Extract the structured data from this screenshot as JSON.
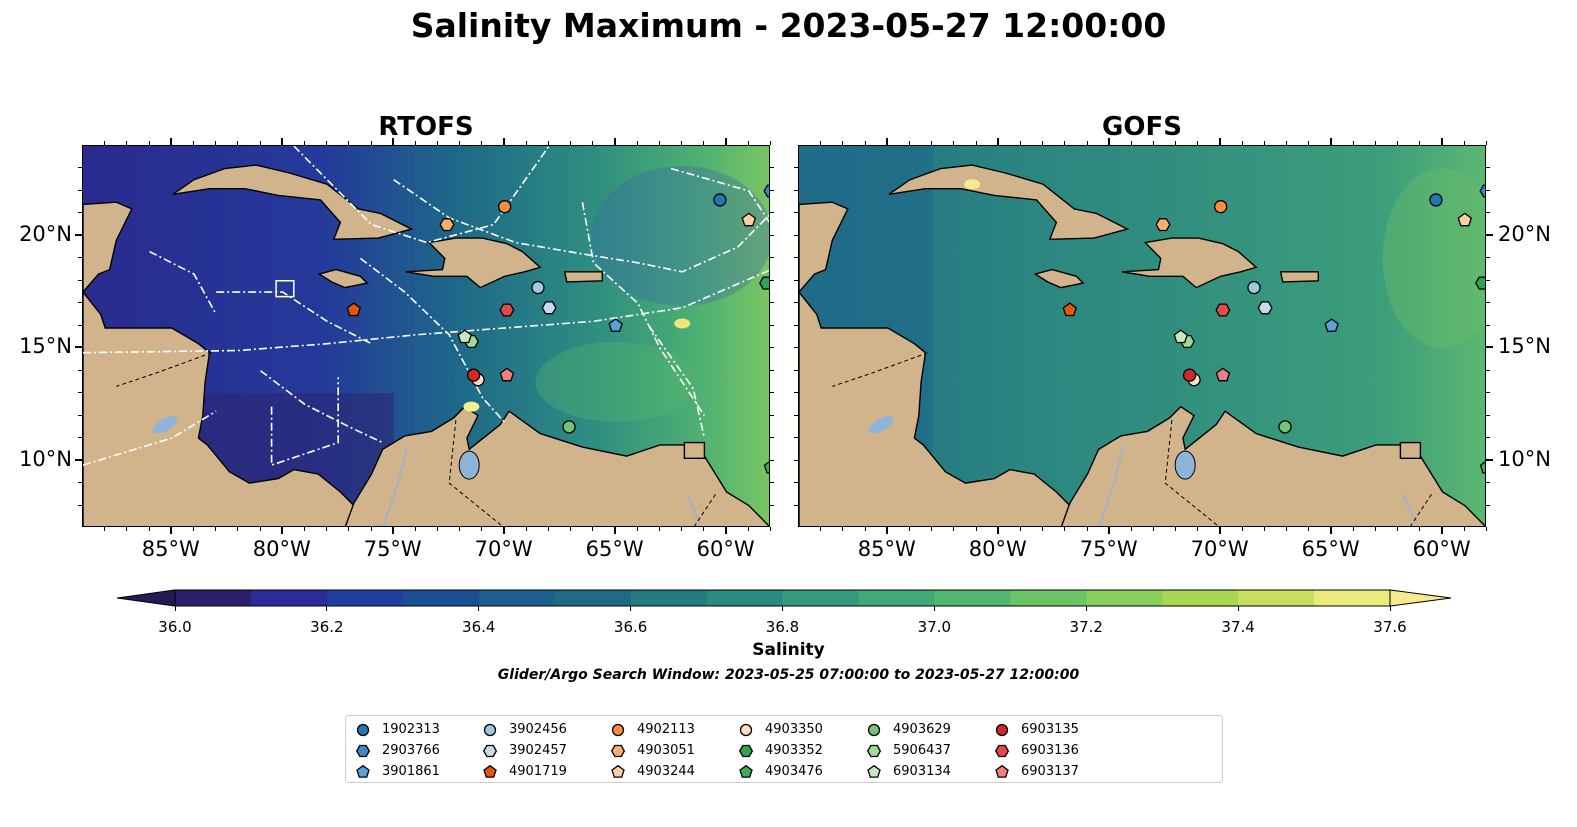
{
  "title": "Salinity Maximum - 2023-05-27 12:00:00",
  "panels": [
    {
      "title": "RTOFS"
    },
    {
      "title": "GOFS"
    }
  ],
  "lat_labels": [
    "20°N",
    "15°N",
    "10°N"
  ],
  "lon_labels": [
    "85°W",
    "80°W",
    "75°W",
    "70°W",
    "65°W",
    "60°W"
  ],
  "map_extent": {
    "lon": [
      -89,
      -58
    ],
    "lat": [
      7,
      24
    ]
  },
  "colorbar": {
    "label": "Salinity",
    "range": [
      36.0,
      37.6
    ],
    "ticks": [
      "36.0",
      "36.2",
      "36.4",
      "36.6",
      "36.8",
      "37.0",
      "37.2",
      "37.4",
      "37.6"
    ],
    "colors": [
      "#2b1e6b",
      "#2b2b9c",
      "#1f3f9e",
      "#1a4f95",
      "#1c5e8c",
      "#1f6b85",
      "#247a82",
      "#2a8a80",
      "#339a7c",
      "#3fa977",
      "#52b86f",
      "#6bc565",
      "#88cf5b",
      "#a8d853",
      "#c8df5e",
      "#ecea7c"
    ],
    "under_color": "#261a55",
    "over_color": "#f5eb8e"
  },
  "search_window": "Glider/Argo Search Window: 2023-05-25 07:00:00 to 2023-05-27 12:00:00",
  "floats": [
    {
      "id": "1902313",
      "marker": "circle",
      "color": "#1f77b4",
      "lon": -60.3,
      "lat": 21.6
    },
    {
      "id": "2903766",
      "marker": "hexagon",
      "color": "#3a88c8",
      "lon": -58.0,
      "lat": 22.0
    },
    {
      "id": "3901861",
      "marker": "pentagon",
      "color": "#5aa2dc",
      "lon": -65.0,
      "lat": 16.0
    },
    {
      "id": "3902456",
      "marker": "circle",
      "color": "#9ecae1",
      "lon": -68.5,
      "lat": 17.7
    },
    {
      "id": "3902457",
      "marker": "hexagon",
      "color": "#c6dbef",
      "lon": -68.0,
      "lat": 16.8
    },
    {
      "id": "4901719",
      "marker": "pentagon",
      "color": "#e6550d",
      "lon": -76.8,
      "lat": 16.7
    },
    {
      "id": "4902113",
      "marker": "circle",
      "color": "#fd8d3c",
      "lon": -70.0,
      "lat": 21.3
    },
    {
      "id": "4903051",
      "marker": "hexagon",
      "color": "#fdae6b",
      "lon": -72.6,
      "lat": 20.5
    },
    {
      "id": "4903244",
      "marker": "pentagon",
      "color": "#fdd0a2",
      "lon": -59.0,
      "lat": 20.7
    },
    {
      "id": "4903350",
      "marker": "circle",
      "color": "#fde0c8",
      "lon": -71.2,
      "lat": 13.6
    },
    {
      "id": "4903352",
      "marker": "hexagon",
      "color": "#31a354",
      "lon": -58.2,
      "lat": 17.9
    },
    {
      "id": "4903476",
      "marker": "pentagon",
      "color": "#41ab5d",
      "lon": -58.0,
      "lat": 9.7
    },
    {
      "id": "4903629",
      "marker": "circle",
      "color": "#74c476",
      "lon": -67.1,
      "lat": 11.5
    },
    {
      "id": "5906437",
      "marker": "hexagon",
      "color": "#a1d99b",
      "lon": -71.5,
      "lat": 15.3
    },
    {
      "id": "6903134",
      "marker": "pentagon",
      "color": "#c7e9c0",
      "lon": -71.8,
      "lat": 15.5
    },
    {
      "id": "6903135",
      "marker": "circle",
      "color": "#d62728",
      "lon": -71.4,
      "lat": 13.8
    },
    {
      "id": "6903136",
      "marker": "hexagon",
      "color": "#e34a4a",
      "lon": -69.9,
      "lat": 16.7
    },
    {
      "id": "6903137",
      "marker": "pentagon",
      "color": "#f08080",
      "lon": -69.9,
      "lat": 13.8
    }
  ]
}
